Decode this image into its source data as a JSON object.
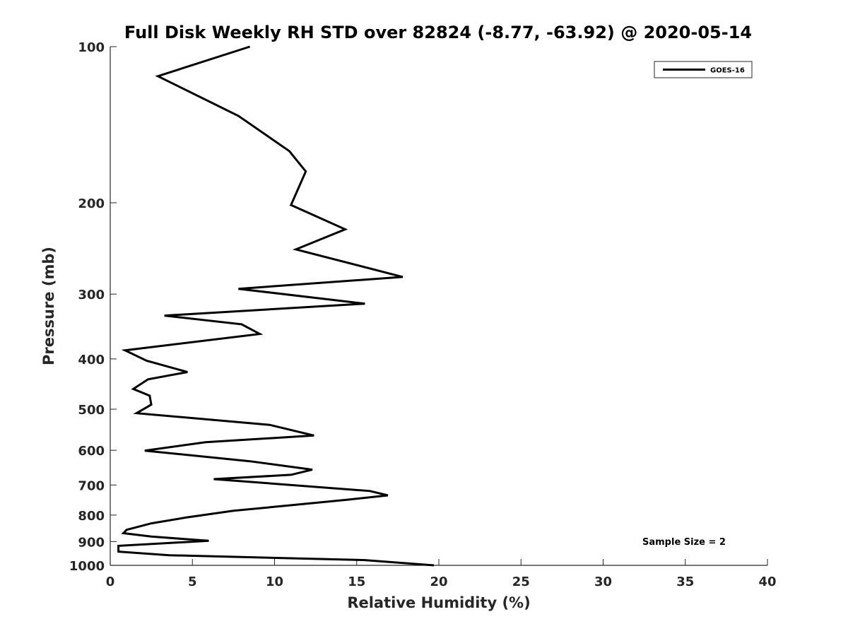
{
  "chart_data": {
    "type": "line",
    "title": "Full Disk Weekly RH STD over 82824 (-8.77, -63.92) @ 2020-05-14",
    "xlabel": "Relative Humidity (%)",
    "ylabel": "Pressure (mb)",
    "xlim": [
      0,
      40
    ],
    "ylim": [
      100,
      1000
    ],
    "y_scale": "log",
    "y_reversed": true,
    "grid": false,
    "legend_position": "top-right",
    "x_ticks": [
      0,
      5,
      10,
      15,
      20,
      25,
      30,
      35,
      40
    ],
    "y_ticks": [
      100,
      200,
      300,
      400,
      500,
      600,
      700,
      800,
      900,
      1000
    ],
    "annotation": "Sample Size = 2",
    "series": [
      {
        "name": "GOES-16",
        "color": "#000000",
        "x": [
          8.5,
          2.9,
          7.8,
          10.9,
          11.9,
          11.0,
          14.3,
          11.3,
          17.8,
          7.8,
          15.5,
          3.3,
          8.0,
          9.1,
          0.9,
          2.2,
          4.7,
          2.3,
          1.4,
          2.4,
          2.5,
          1.6,
          9.7,
          12.4,
          5.8,
          2.1,
          8.5,
          12.3,
          11.0,
          6.3,
          15.8,
          16.9,
          14.5,
          10.8,
          7.5,
          4.6,
          2.5,
          1.0,
          0.8,
          2.5,
          6.0,
          0.5,
          0.5,
          3.6,
          15.5,
          19.7
        ],
        "y": [
          100,
          114,
          136,
          159,
          174,
          202,
          225,
          246,
          278,
          293,
          313,
          330,
          343,
          358,
          385,
          403,
          424,
          438,
          457,
          471,
          490,
          509,
          536,
          562,
          579,
          601,
          630,
          654,
          669,
          682,
          719,
          733,
          747,
          767,
          785,
          809,
          830,
          854,
          867,
          880,
          897,
          917,
          941,
          956,
          977,
          1000
        ]
      }
    ]
  }
}
